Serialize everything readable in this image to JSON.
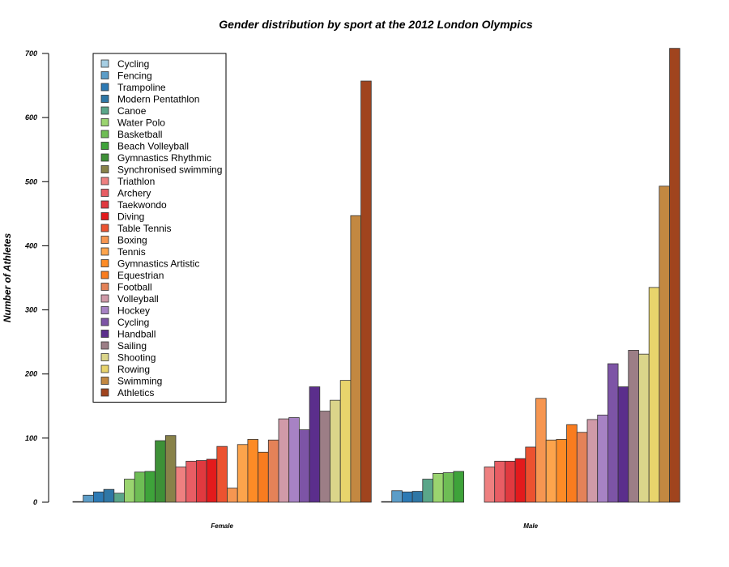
{
  "chart_data": {
    "type": "bar",
    "title": "Gender distribution by sport at the 2012 London Olympics",
    "xlabel": "",
    "ylabel": "Number of Athletes",
    "ylim": [
      0,
      700
    ],
    "yticks": [
      0,
      100,
      200,
      300,
      400,
      500,
      600,
      700
    ],
    "grid": false,
    "legend_position": "top-left",
    "categories": [
      "Female",
      "Male"
    ],
    "series": [
      {
        "name": "Cycling",
        "color": "#a6cee3",
        "values": [
          1,
          1
        ]
      },
      {
        "name": "Fencing",
        "color": "#5c9dc8",
        "values": [
          11,
          18
        ]
      },
      {
        "name": "Trampoline",
        "color": "#2c7ab5",
        "values": [
          16,
          16
        ]
      },
      {
        "name": "Modern Pentathlon",
        "color": "#2f77a6",
        "values": [
          20,
          17
        ]
      },
      {
        "name": "Canoe",
        "color": "#5aa689",
        "values": [
          14,
          36
        ]
      },
      {
        "name": "Water Polo",
        "color": "#9ad46f",
        "values": [
          36,
          45
        ]
      },
      {
        "name": "Basketball",
        "color": "#6ebd55",
        "values": [
          47,
          46
        ]
      },
      {
        "name": "Beach Volleyball",
        "color": "#3ea33a",
        "values": [
          48,
          48
        ]
      },
      {
        "name": "Gymnastics Rhythmic",
        "color": "#3e9037",
        "values": [
          96,
          0
        ]
      },
      {
        "name": "Synchronised swimming",
        "color": "#888249",
        "values": [
          104,
          0
        ]
      },
      {
        "name": "Triathlon",
        "color": "#ee8080",
        "values": [
          55,
          55
        ]
      },
      {
        "name": "Archery",
        "color": "#e85d64",
        "values": [
          64,
          64
        ]
      },
      {
        "name": "Taekwondo",
        "color": "#e0393f",
        "values": [
          65,
          64
        ]
      },
      {
        "name": "Diving",
        "color": "#e31a1c",
        "values": [
          67,
          68
        ]
      },
      {
        "name": "Table Tennis",
        "color": "#ec5230",
        "values": [
          87,
          86
        ]
      },
      {
        "name": "Boxing",
        "color": "#f69651",
        "values": [
          22,
          162
        ]
      },
      {
        "name": "Tennis",
        "color": "#fda44c",
        "values": [
          90,
          97
        ]
      },
      {
        "name": "Gymnastics Artistic",
        "color": "#fd8b26",
        "values": [
          98,
          98
        ]
      },
      {
        "name": "Equestrian",
        "color": "#f97c1f",
        "values": [
          78,
          121
        ]
      },
      {
        "name": "Football",
        "color": "#e48258",
        "values": [
          97,
          109
        ]
      },
      {
        "name": "Volleyball",
        "color": "#d09aa8",
        "values": [
          130,
          129
        ]
      },
      {
        "name": "Hockey",
        "color": "#a782c4",
        "values": [
          132,
          136
        ]
      },
      {
        "name": "Cycling",
        "color": "#7d54a6",
        "values": [
          113,
          216
        ]
      },
      {
        "name": "Handball",
        "color": "#5b2e8c",
        "values": [
          180,
          180
        ]
      },
      {
        "name": "Sailing",
        "color": "#9c7e86",
        "values": [
          142,
          237
        ]
      },
      {
        "name": "Shooting",
        "color": "#dbd58a",
        "values": [
          159,
          231
        ]
      },
      {
        "name": "Rowing",
        "color": "#e8d46c",
        "values": [
          190,
          335
        ]
      },
      {
        "name": "Swimming",
        "color": "#c38841",
        "values": [
          447,
          493
        ]
      },
      {
        "name": "Athletics",
        "color": "#a0441e",
        "values": [
          657,
          708
        ]
      }
    ]
  }
}
